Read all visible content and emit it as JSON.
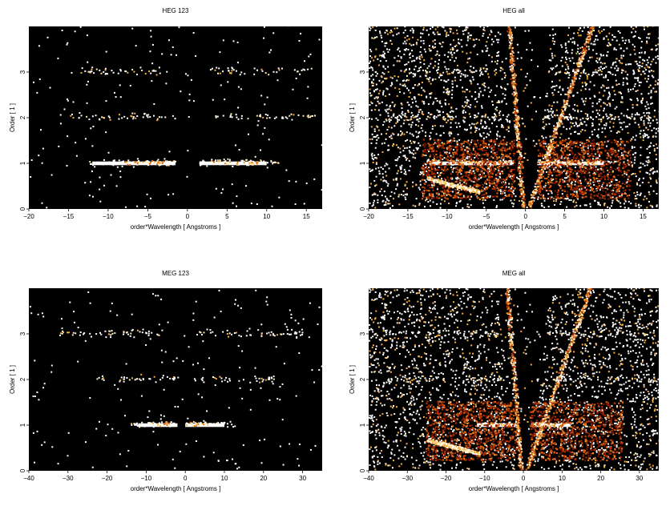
{
  "figure": {
    "background": "#ffffff",
    "plot_background": "#000000"
  },
  "colormap": [
    "#7a1500",
    "#b83200",
    "#e06a10",
    "#f5b040",
    "#ffe9b0",
    "#ffffff"
  ],
  "chart_data": [
    {
      "id": "heg123",
      "type": "heatmap",
      "title": "HEG 123",
      "xlabel": "order*Wavelength [ Angstroms ]",
      "ylabel": "Order [ 1 ]",
      "xlim": [
        -20,
        17
      ],
      "ylim": [
        0,
        4
      ],
      "xticks": [
        -20,
        -15,
        -10,
        -5,
        0,
        5,
        10,
        15
      ],
      "yticks": [
        0,
        1,
        2,
        3
      ],
      "orders": [
        {
          "order": 1,
          "ranges": [
            [
              -12.5,
              -1.5
            ],
            [
              1.5,
              11.5
            ]
          ],
          "core": [
            [
              -12,
              -1.5
            ],
            [
              1.5,
              10
            ]
          ],
          "peak": [
            [
              -8,
              -3
            ],
            [
              3,
              9
            ]
          ]
        },
        {
          "order": 2,
          "ranges": [
            [
              -15,
              -1.5
            ],
            [
              2,
              16
            ]
          ]
        },
        {
          "order": 3,
          "ranges": [
            [
              -14,
              -3
            ],
            [
              3,
              16
            ]
          ]
        }
      ],
      "diagonal_streaks": false,
      "background_scatter": 0.02
    },
    {
      "id": "hegall",
      "type": "heatmap",
      "title": "HEG all",
      "xlabel": "order*Wavelength [ Angstroms ]",
      "ylabel": "Order [ 1 ]",
      "xlim": [
        -20,
        17
      ],
      "ylim": [
        0,
        4
      ],
      "xticks": [
        -20,
        -15,
        -10,
        -5,
        0,
        5,
        10,
        15
      ],
      "yticks": [
        0,
        1,
        2,
        3
      ],
      "orders": [
        {
          "order": 1,
          "ranges": [
            [
              -13,
              -1.5
            ],
            [
              1.5,
              10
            ]
          ],
          "core": [
            [
              -12,
              -1.5
            ],
            [
              1.5,
              10
            ]
          ],
          "peak": [
            [
              -10,
              -2
            ],
            [
              2,
              9
            ]
          ]
        },
        {
          "order": 2,
          "ranges": [
            [
              -18,
              -1.5
            ],
            [
              2,
              16
            ]
          ]
        },
        {
          "order": 3,
          "ranges": [
            [
              -18,
              -3
            ],
            [
              3,
              16
            ]
          ]
        }
      ],
      "diagonal_streaks": true,
      "background_scatter": 0.3
    },
    {
      "id": "meg123",
      "type": "heatmap",
      "title": "MEG 123",
      "xlabel": "order*Wavelength [ Angstroms ]",
      "ylabel": "Order [ 1 ]",
      "xlim": [
        -40,
        35
      ],
      "ylim": [
        0,
        4
      ],
      "xticks": [
        -40,
        -30,
        -20,
        -10,
        0,
        10,
        20,
        30
      ],
      "yticks": [
        0,
        1,
        2,
        3
      ],
      "orders": [
        {
          "order": 1,
          "ranges": [
            [
              -14,
              -2
            ],
            [
              0,
              12
            ]
          ],
          "core": [
            [
              -12,
              -2
            ],
            [
              0,
              10
            ]
          ],
          "peak": [
            [
              -10,
              -4
            ],
            [
              0,
              6
            ]
          ]
        },
        {
          "order": 2,
          "ranges": [
            [
              -23,
              -2
            ],
            [
              2,
              24
            ]
          ]
        },
        {
          "order": 3,
          "ranges": [
            [
              -33,
              -6
            ],
            [
              3,
              30
            ]
          ]
        }
      ],
      "diagonal_streaks": false,
      "background_scatter": 0.02
    },
    {
      "id": "megall",
      "type": "heatmap",
      "title": "MEG all",
      "xlabel": "order*Wavelength [ Angstroms ]",
      "ylabel": "Order [ 1 ]",
      "xlim": [
        -40,
        35
      ],
      "ylim": [
        0,
        4
      ],
      "xticks": [
        -40,
        -30,
        -20,
        -10,
        0,
        10,
        20,
        30
      ],
      "yticks": [
        0,
        1,
        2,
        3
      ],
      "orders": [
        {
          "order": 1,
          "ranges": [
            [
              -12,
              -2
            ],
            [
              2,
              12
            ]
          ],
          "core": [
            [
              -12,
              -2
            ],
            [
              2,
              12
            ]
          ],
          "peak": [
            [
              -10,
              -2
            ],
            [
              2,
              10
            ]
          ]
        },
        {
          "order": 2,
          "ranges": [
            [
              -36,
              -2
            ],
            [
              2,
              34
            ]
          ]
        },
        {
          "order": 3,
          "ranges": [
            [
              -36,
              -6
            ],
            [
              3,
              34
            ]
          ]
        }
      ],
      "diagonal_streaks": true,
      "background_scatter": 0.3
    }
  ]
}
